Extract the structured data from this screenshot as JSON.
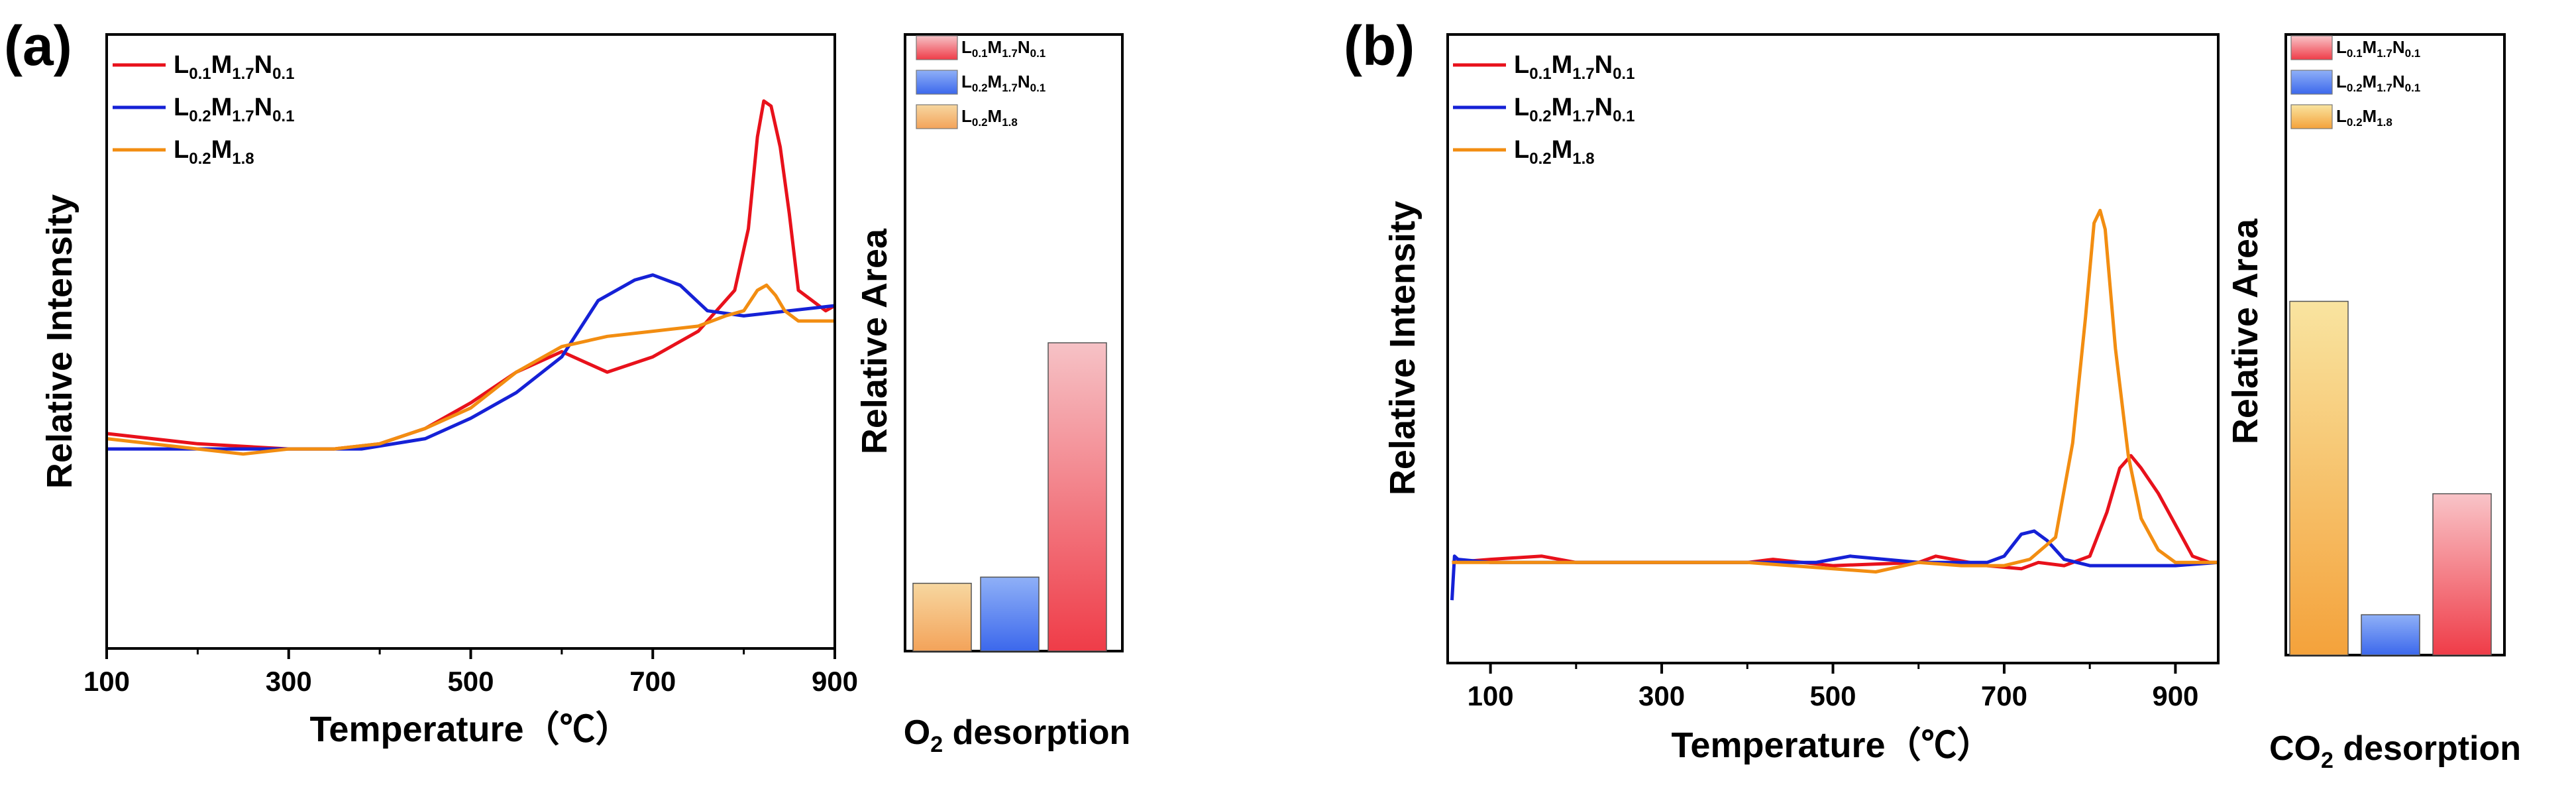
{
  "chart_data": [
    {
      "type": "line",
      "panel_label": "(a)",
      "ylabel": "Relative Intensity",
      "xlabel": "Temperature（℃）",
      "xlim": [
        100,
        900
      ],
      "ylim": [
        -0.1,
        1.1
      ],
      "x_ticks": [
        "100",
        "300",
        "500",
        "700",
        "900"
      ],
      "x_tick_values": [
        100,
        300,
        500,
        700,
        900
      ],
      "series": [
        {
          "key": "LMN01",
          "name": [
            "L",
            "0.1",
            "M",
            "1.7",
            "N",
            "0.1"
          ],
          "color": "#e8111b",
          "x": [
            100,
            200,
            300,
            350,
            400,
            450,
            500,
            550,
            600,
            650,
            700,
            750,
            790,
            805,
            815,
            822,
            830,
            840,
            850,
            860,
            875,
            890,
            900
          ],
          "y": [
            0.32,
            0.3,
            0.29,
            0.29,
            0.3,
            0.33,
            0.38,
            0.44,
            0.48,
            0.44,
            0.47,
            0.52,
            0.6,
            0.72,
            0.9,
            0.97,
            0.96,
            0.88,
            0.75,
            0.6,
            0.58,
            0.56,
            0.57
          ]
        },
        {
          "key": "LMN02",
          "name": [
            "L",
            "0.2",
            "M",
            "1.7",
            "N",
            "0.1"
          ],
          "color": "#1521d6",
          "x": [
            100,
            200,
            300,
            380,
            450,
            500,
            550,
            600,
            640,
            680,
            700,
            730,
            760,
            800,
            850,
            900
          ],
          "y": [
            0.29,
            0.29,
            0.29,
            0.29,
            0.31,
            0.35,
            0.4,
            0.47,
            0.58,
            0.62,
            0.63,
            0.61,
            0.56,
            0.55,
            0.56,
            0.57
          ]
        },
        {
          "key": "LM",
          "name": [
            "L",
            "0.2",
            "M",
            "1.8"
          ],
          "color": "#f28d11",
          "x": [
            100,
            200,
            250,
            300,
            350,
            400,
            450,
            500,
            550,
            600,
            650,
            700,
            750,
            780,
            800,
            815,
            825,
            835,
            845,
            860,
            880,
            900
          ],
          "y": [
            0.31,
            0.29,
            0.28,
            0.29,
            0.29,
            0.3,
            0.33,
            0.37,
            0.44,
            0.49,
            0.51,
            0.52,
            0.53,
            0.55,
            0.56,
            0.6,
            0.61,
            0.59,
            0.56,
            0.54,
            0.54,
            0.54
          ]
        }
      ],
      "bar_ylabel": "Relative Area",
      "bar_caption": {
        "pre": "O",
        "sub": "2",
        "post": " desorption"
      },
      "bar_ylim": [
        0,
        1
      ],
      "bar_series": [
        {
          "key": "LM",
          "name": [
            "L",
            "0.2",
            "M",
            "1.8"
          ],
          "value": 0.11,
          "color_top": "#f7d7a0",
          "color_bottom": "#f3a35a"
        },
        {
          "key": "LMN02",
          "name": [
            "L",
            "0.2",
            "M",
            "1.7",
            "N",
            "0.1"
          ],
          "value": 0.12,
          "color_top": "#8fb0f7",
          "color_bottom": "#3c68ec"
        },
        {
          "key": "LMN01",
          "name": [
            "L",
            "0.1",
            "M",
            "1.7",
            "N",
            "0.1"
          ],
          "value": 0.5,
          "color_top": "#f6c2c6",
          "color_bottom": "#ef3c48"
        }
      ],
      "bar_legend_order": [
        "LMN01",
        "LMN02",
        "LM"
      ]
    },
    {
      "type": "line",
      "panel_label": "(b)",
      "ylabel": "Relative Intensity",
      "xlabel": "Temperature（℃）",
      "xlim": [
        50,
        950
      ],
      "ylim": [
        0,
        1
      ],
      "x_ticks": [
        "100",
        "300",
        "500",
        "700",
        "900"
      ],
      "x_tick_values": [
        100,
        300,
        500,
        700,
        900
      ],
      "series": [
        {
          "key": "LMN01",
          "name": [
            "L",
            "0.1",
            "M",
            "1.7",
            "N",
            "0.1"
          ],
          "color": "#e8111b",
          "x": [
            55,
            100,
            160,
            200,
            300,
            400,
            430,
            500,
            600,
            620,
            680,
            720,
            740,
            770,
            800,
            820,
            835,
            848,
            860,
            880,
            900,
            920,
            940,
            950
          ],
          "y": [
            0.16,
            0.165,
            0.17,
            0.16,
            0.16,
            0.16,
            0.165,
            0.155,
            0.16,
            0.17,
            0.155,
            0.15,
            0.16,
            0.155,
            0.17,
            0.24,
            0.31,
            0.33,
            0.31,
            0.27,
            0.22,
            0.17,
            0.16,
            0.16
          ]
        },
        {
          "key": "LMN02",
          "name": [
            "L",
            "0.2",
            "M",
            "1.7",
            "N",
            "0.1"
          ],
          "color": "#1521d6",
          "x": [
            55,
            58,
            62,
            100,
            200,
            300,
            400,
            480,
            500,
            520,
            600,
            680,
            700,
            720,
            735,
            750,
            770,
            800,
            850,
            900,
            950
          ],
          "y": [
            0.1,
            0.17,
            0.165,
            0.16,
            0.16,
            0.16,
            0.16,
            0.16,
            0.165,
            0.17,
            0.16,
            0.16,
            0.17,
            0.205,
            0.21,
            0.195,
            0.165,
            0.155,
            0.155,
            0.155,
            0.16
          ]
        },
        {
          "key": "LM",
          "name": [
            "L",
            "0.2",
            "M",
            "1.8"
          ],
          "color": "#f28d11",
          "x": [
            55,
            100,
            200,
            300,
            400,
            500,
            550,
            600,
            650,
            700,
            730,
            760,
            780,
            795,
            805,
            812,
            818,
            830,
            845,
            860,
            880,
            900,
            950
          ],
          "y": [
            0.16,
            0.16,
            0.16,
            0.16,
            0.16,
            0.15,
            0.145,
            0.16,
            0.155,
            0.155,
            0.165,
            0.2,
            0.35,
            0.55,
            0.7,
            0.72,
            0.69,
            0.5,
            0.33,
            0.23,
            0.18,
            0.16,
            0.16
          ]
        }
      ],
      "bar_ylabel": "Relative Area",
      "bar_caption": {
        "pre": "CO",
        "sub": "2",
        "post": " desorption"
      },
      "bar_ylim": [
        0,
        1
      ],
      "bar_series": [
        {
          "key": "LM",
          "name": [
            "L",
            "0.2",
            "M",
            "1.8"
          ],
          "value": 0.57,
          "color_top": "#f9e4a0",
          "color_bottom": "#f4a23b"
        },
        {
          "key": "LMN02",
          "name": [
            "L",
            "0.2",
            "M",
            "1.7",
            "N",
            "0.1"
          ],
          "value": 0.065,
          "color_top": "#8fb0f7",
          "color_bottom": "#3c68ec"
        },
        {
          "key": "LMN01",
          "name": [
            "L",
            "0.1",
            "M",
            "1.7",
            "N",
            "0.1"
          ],
          "value": 0.26,
          "color_top": "#f9c4c8",
          "color_bottom": "#ef3c48"
        }
      ],
      "bar_legend_order": [
        "LMN01",
        "LMN02",
        "LM"
      ]
    }
  ]
}
